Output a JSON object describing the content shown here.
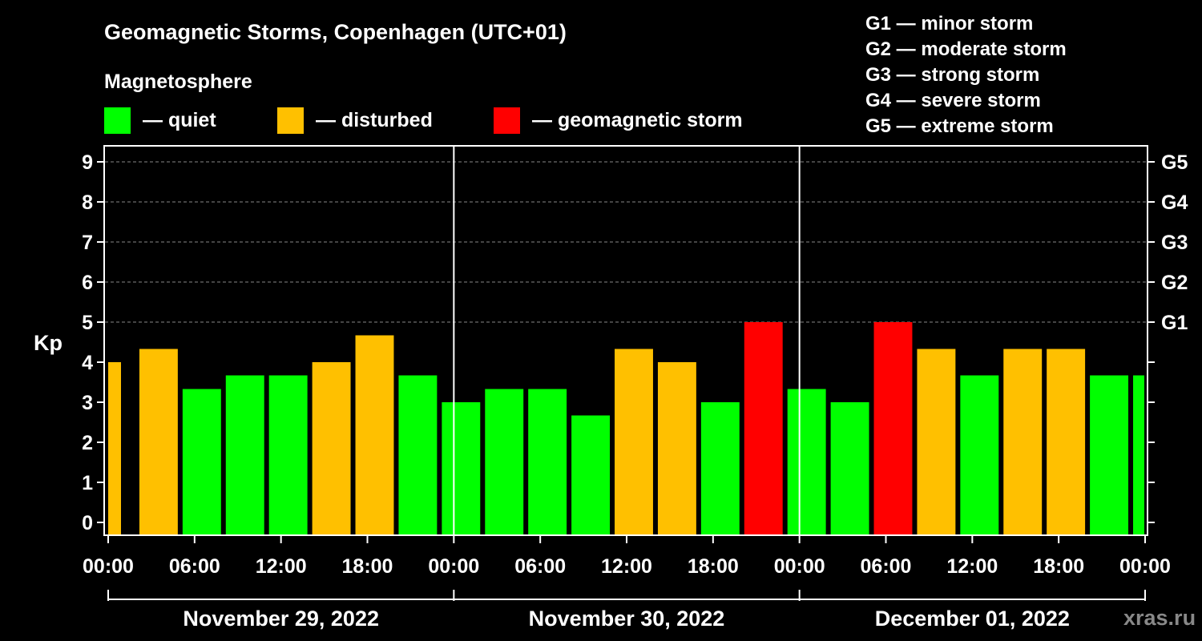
{
  "chart_data": {
    "type": "bar",
    "title": "Geomagnetic Storms, Copenhagen (UTC+01)",
    "subtitle": "Magnetosphere",
    "ylabel": "Kp",
    "ylim": [
      0,
      9
    ],
    "y_ticks": [
      "0",
      "1",
      "2",
      "3",
      "4",
      "5",
      "6",
      "7",
      "8",
      "9"
    ],
    "y_right_ticks": [
      {
        "kp": 5,
        "label": "G1"
      },
      {
        "kp": 6,
        "label": "G2"
      },
      {
        "kp": 7,
        "label": "G3"
      },
      {
        "kp": 8,
        "label": "G4"
      },
      {
        "kp": 9,
        "label": "G5"
      }
    ],
    "x_range_hours": [
      -1,
      72
    ],
    "x_tick_labels": [
      "00:00",
      "06:00",
      "12:00",
      "18:00",
      "00:00",
      "06:00",
      "12:00",
      "18:00",
      "00:00",
      "06:00",
      "12:00",
      "18:00",
      "00:00"
    ],
    "days": [
      "November 29, 2022",
      "November 30, 2022",
      "December 01, 2022"
    ],
    "bar_start_hours": [
      -1,
      2,
      5,
      8,
      11,
      14,
      17,
      20,
      23,
      26,
      29,
      32,
      35,
      38,
      41,
      44,
      47,
      50,
      53,
      56,
      59,
      62,
      65,
      68,
      71
    ],
    "values": [
      4.0,
      4.33,
      3.33,
      3.67,
      3.67,
      4.0,
      4.67,
      3.67,
      3.0,
      3.33,
      3.33,
      2.67,
      4.33,
      4.0,
      3.0,
      5.0,
      3.33,
      3.0,
      5.0,
      4.33,
      3.67,
      4.33,
      4.33,
      3.67,
      3.67
    ],
    "status": [
      "disturbed",
      "disturbed",
      "quiet",
      "quiet",
      "quiet",
      "disturbed",
      "disturbed",
      "quiet",
      "quiet",
      "quiet",
      "quiet",
      "quiet",
      "disturbed",
      "disturbed",
      "quiet",
      "storm",
      "quiet",
      "quiet",
      "storm",
      "disturbed",
      "quiet",
      "disturbed",
      "disturbed",
      "quiet",
      "quiet"
    ],
    "colors": {
      "quiet": "#00ff00",
      "disturbed": "#ffc000",
      "storm": "#ff0000"
    },
    "legend": [
      {
        "key": "quiet",
        "label": "— quiet"
      },
      {
        "key": "disturbed",
        "label": "— disturbed"
      },
      {
        "key": "storm",
        "label": "— geomagnetic storm"
      }
    ],
    "scale_legend": [
      "G1 — minor storm",
      "G2 — moderate storm",
      "G3 — strong storm",
      "G4 — severe storm",
      "G5 — extreme storm"
    ],
    "watermark": "xras.ru"
  }
}
